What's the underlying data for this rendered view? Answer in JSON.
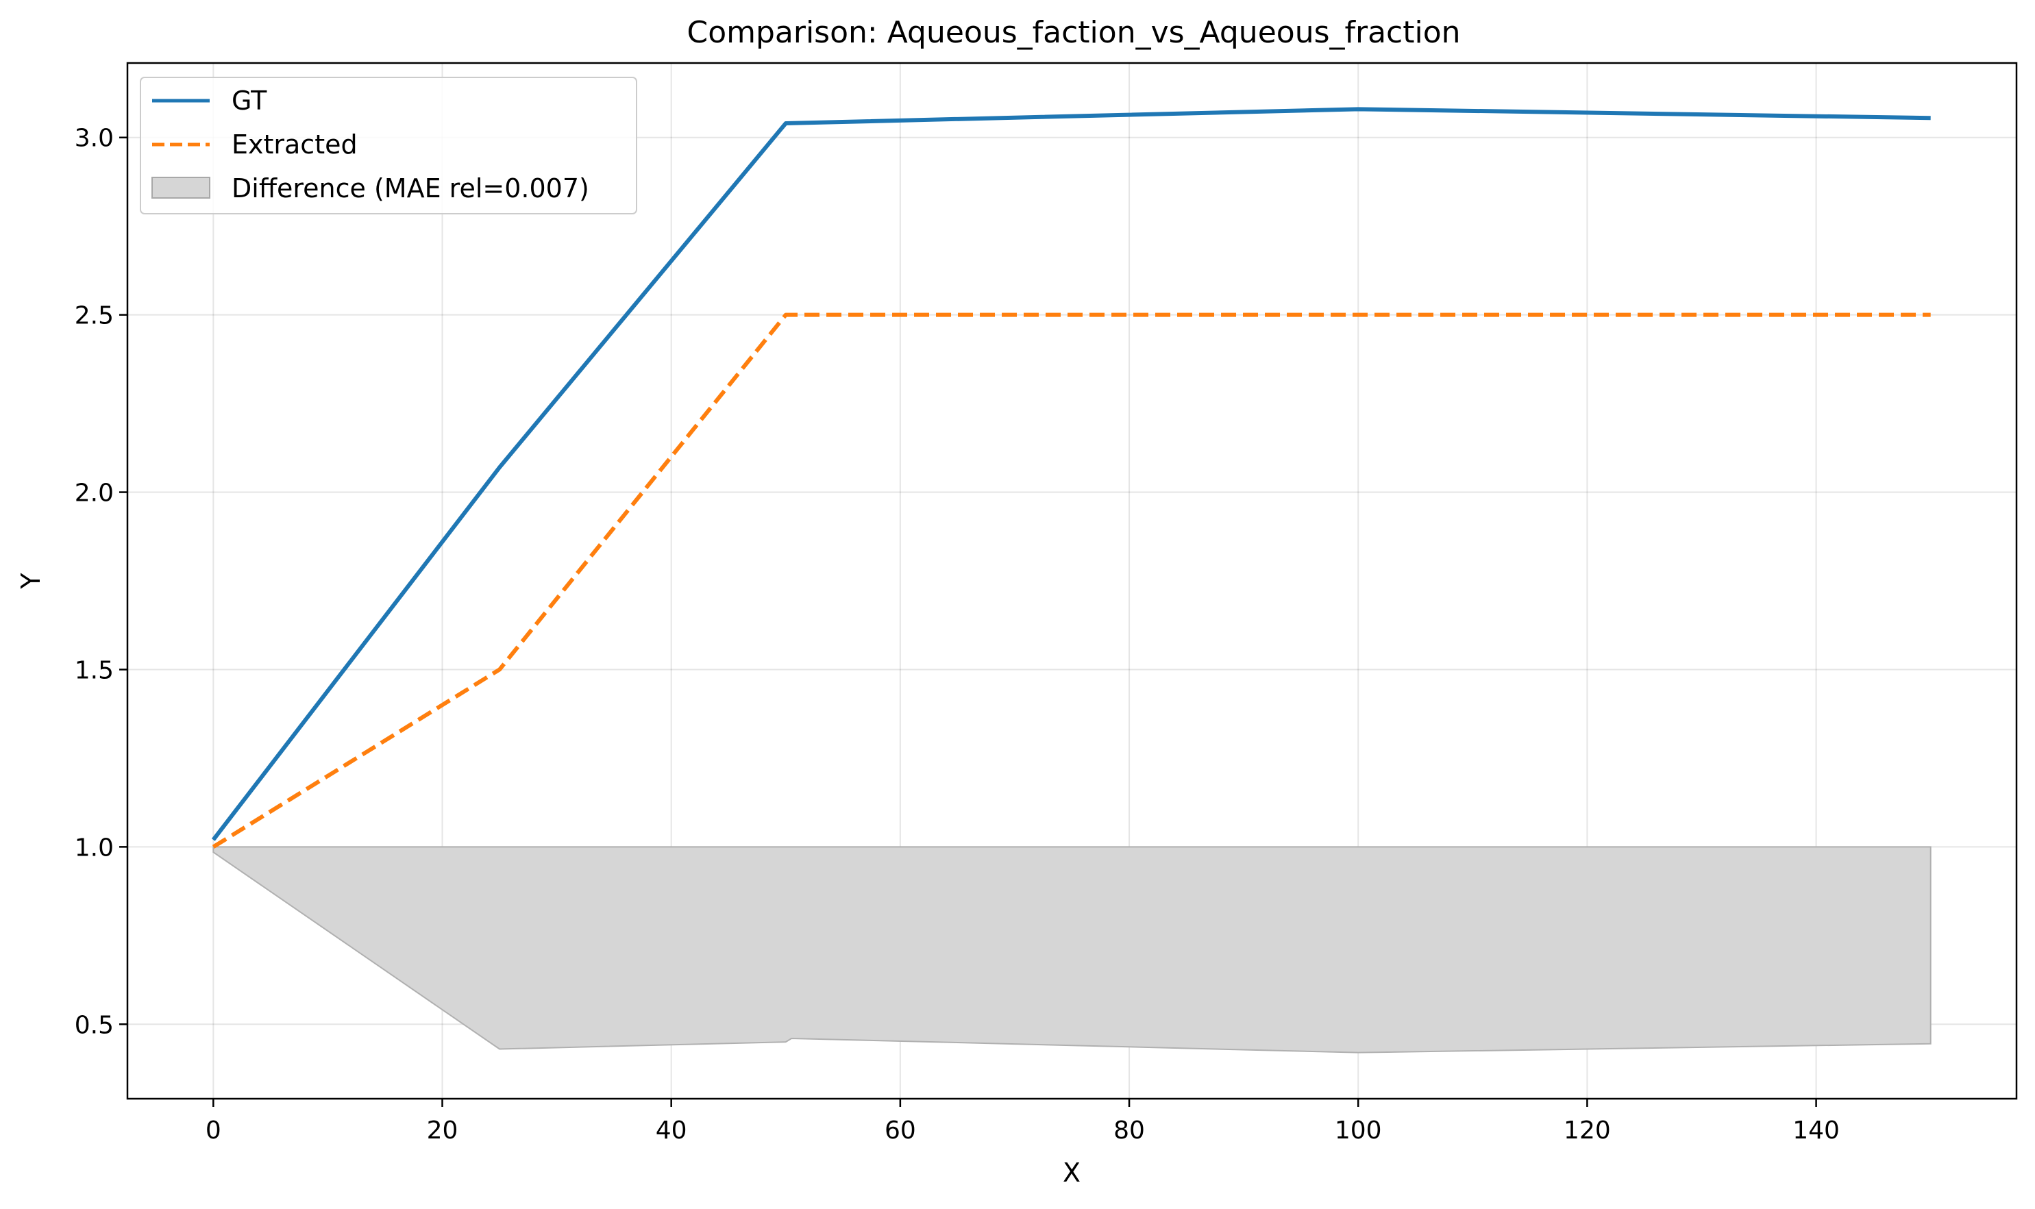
{
  "chart_data": {
    "type": "line",
    "title": "Comparison: Aqueous_faction_vs_Aqueous_fraction",
    "xlabel": "X",
    "ylabel": "Y",
    "xlim": [
      -7.5,
      157.5
    ],
    "ylim": [
      0.29,
      3.21
    ],
    "x_ticks": [
      0,
      20,
      40,
      60,
      80,
      100,
      120,
      140
    ],
    "y_ticks": [
      0.5,
      1.0,
      1.5,
      2.0,
      2.5,
      3.0
    ],
    "x_tick_labels": [
      "0",
      "20",
      "40",
      "60",
      "80",
      "100",
      "120",
      "140"
    ],
    "y_tick_labels": [
      "0.5",
      "1.0",
      "1.5",
      "2.0",
      "2.5",
      "3.0"
    ],
    "grid": true,
    "legend_position": "upper-left",
    "series": [
      {
        "name": "GT",
        "style": "solid",
        "color": "#1f77b4",
        "x": [
          0,
          25,
          50,
          100,
          150
        ],
        "y": [
          1.02,
          2.07,
          3.04,
          3.08,
          3.055
        ]
      },
      {
        "name": "Extracted",
        "style": "dashed",
        "color": "#ff7f0e",
        "x": [
          0,
          25,
          50,
          100,
          150
        ],
        "y": [
          1.0,
          1.5,
          2.5,
          2.5,
          2.5
        ]
      }
    ],
    "difference": {
      "name": "Difference (MAE rel=0.007)",
      "color": "#d6d6d6",
      "x": [
        0,
        25,
        50,
        50.5,
        100,
        150
      ],
      "y_upper": [
        1.0,
        1.0,
        1.0,
        1.0,
        1.0,
        1.0
      ],
      "y_lower": [
        0.985,
        0.43,
        0.45,
        0.46,
        0.42,
        0.445
      ]
    }
  }
}
